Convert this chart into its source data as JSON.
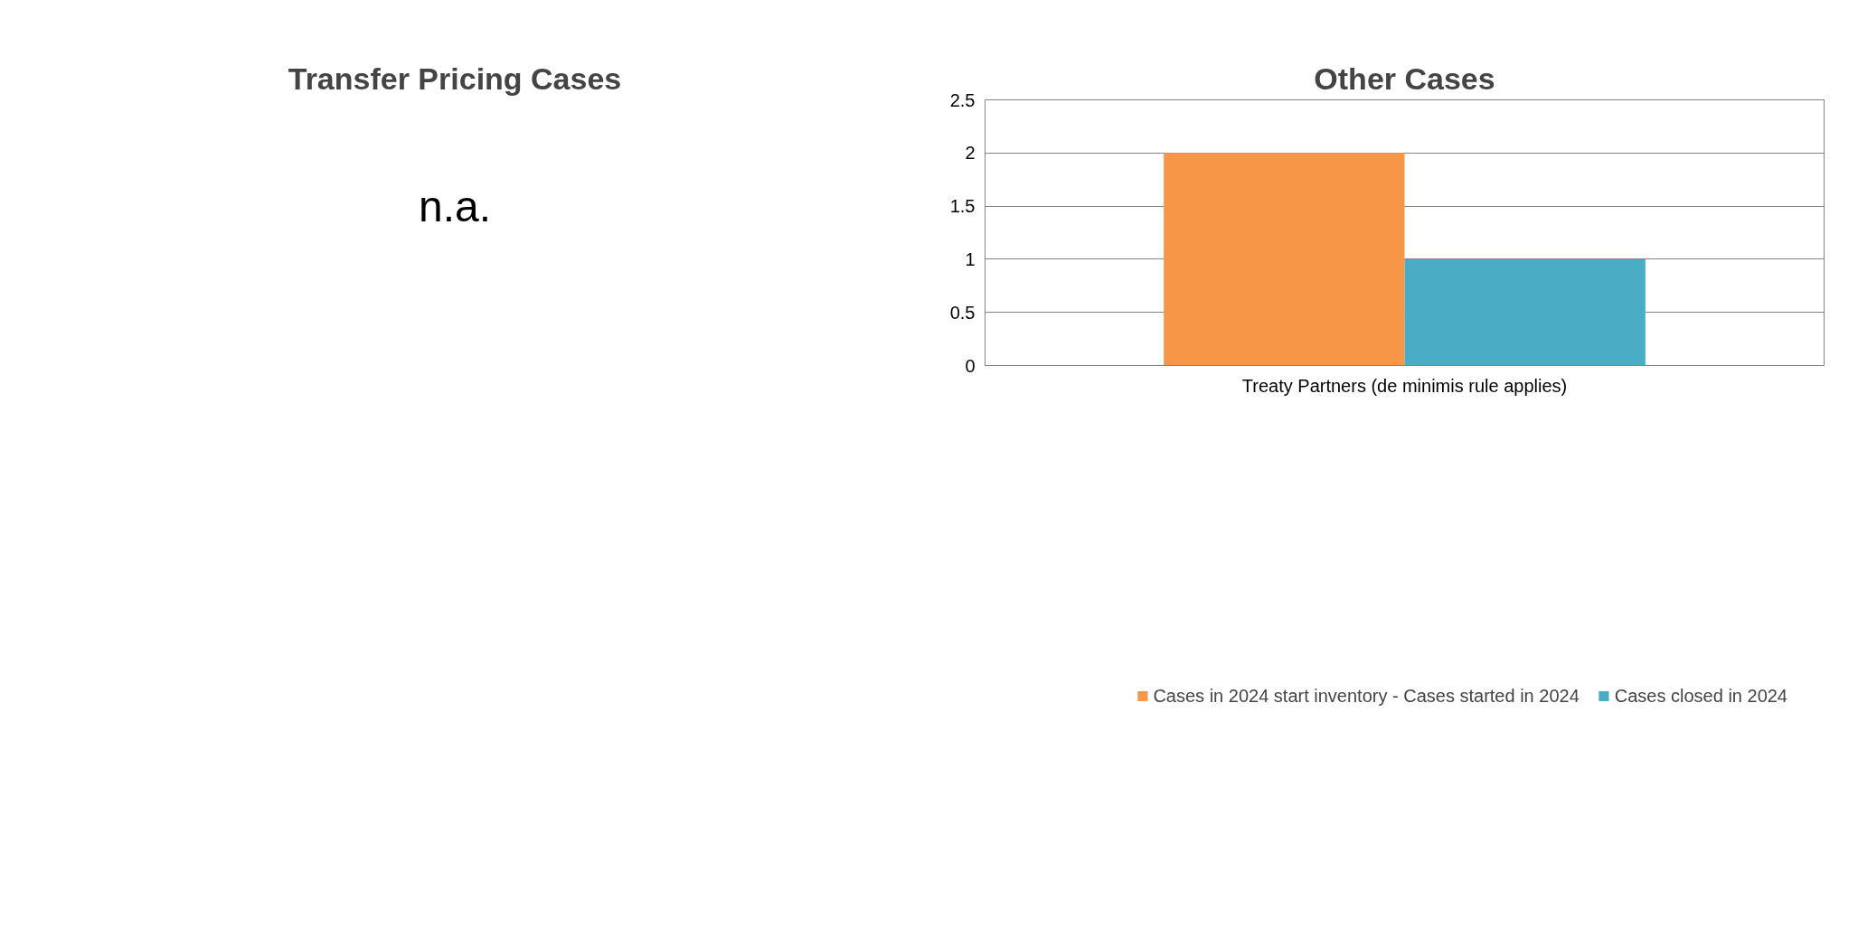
{
  "chart_data": [
    {
      "type": "other",
      "title": "Transfer Pricing Cases",
      "annotations": [
        "n.a."
      ]
    },
    {
      "type": "bar",
      "title": "Other Cases",
      "categories": [
        "Treaty Partners (de minimis rule applies)"
      ],
      "series": [
        {
          "name": "Cases in 2024 start inventory - Cases started in 2024",
          "color": "#f79646",
          "values": [
            2
          ]
        },
        {
          "name": "Cases closed in 2024",
          "color": "#4bacc6",
          "values": [
            1
          ]
        }
      ],
      "ylim": [
        0,
        2.5
      ],
      "yticks": [
        0,
        0.5,
        1,
        1.5,
        2,
        2.5
      ],
      "grid": "y",
      "legend": "bottom"
    }
  ]
}
